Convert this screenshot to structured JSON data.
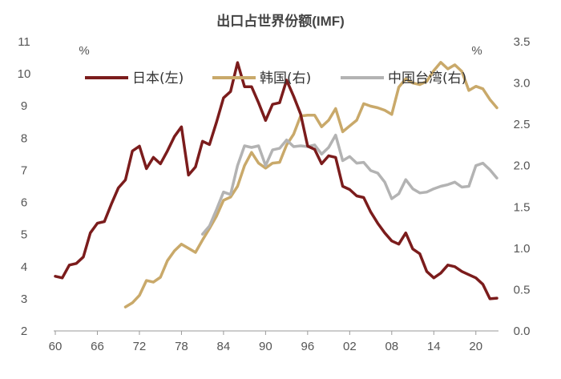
{
  "chart_data": {
    "type": "line",
    "title": "出口占世界份额(IMF)",
    "left_unit": "%",
    "right_unit": "%",
    "x_ticks": [
      "60",
      "66",
      "72",
      "78",
      "84",
      "90",
      "96",
      "02",
      "08",
      "14",
      "20"
    ],
    "x_tick_years": [
      1960,
      1966,
      1972,
      1978,
      1984,
      1990,
      1996,
      2002,
      2008,
      2014,
      2020
    ],
    "x_range": [
      1960,
      2023
    ],
    "y_left_range": [
      2,
      11
    ],
    "y_left_ticks": [
      "2",
      "3",
      "4",
      "5",
      "6",
      "7",
      "8",
      "9",
      "10",
      "11"
    ],
    "y_right_range": [
      0.0,
      3.5
    ],
    "y_right_ticks": [
      "0.0",
      "0.5",
      "1.0",
      "1.5",
      "2.0",
      "2.5",
      "3.0",
      "3.5"
    ],
    "series": [
      {
        "name": "日本(左)",
        "axis": "left",
        "color": "#7b1c1c",
        "x": [
          1960,
          1961,
          1962,
          1963,
          1964,
          1965,
          1966,
          1967,
          1968,
          1969,
          1970,
          1971,
          1972,
          1973,
          1974,
          1975,
          1976,
          1977,
          1978,
          1979,
          1980,
          1981,
          1982,
          1983,
          1984,
          1985,
          1986,
          1987,
          1988,
          1989,
          1990,
          1991,
          1992,
          1993,
          1994,
          1995,
          1996,
          1997,
          1998,
          1999,
          2000,
          2001,
          2002,
          2003,
          2004,
          2005,
          2006,
          2007,
          2008,
          2009,
          2010,
          2011,
          2012,
          2013,
          2014,
          2015,
          2016,
          2017,
          2018,
          2019,
          2020,
          2021,
          2022,
          2023
        ],
        "values": [
          3.7,
          3.65,
          4.05,
          4.1,
          4.3,
          5.05,
          5.35,
          5.4,
          5.95,
          6.45,
          6.7,
          7.6,
          7.75,
          7.05,
          7.4,
          7.2,
          7.6,
          8.05,
          8.35,
          6.85,
          7.1,
          7.9,
          7.8,
          8.5,
          9.25,
          9.45,
          10.35,
          9.6,
          9.6,
          9.1,
          8.55,
          9.05,
          9.1,
          9.8,
          9.3,
          8.75,
          7.75,
          7.65,
          7.2,
          7.45,
          7.4,
          6.5,
          6.4,
          6.2,
          6.15,
          5.7,
          5.35,
          5.05,
          4.8,
          4.7,
          5.05,
          4.55,
          4.4,
          3.85,
          3.65,
          3.8,
          4.05,
          4.0,
          3.85,
          3.75,
          3.65,
          3.45,
          3.0,
          3.02
        ]
      },
      {
        "name": "韩国(右)",
        "axis": "right",
        "color": "#c9a96a",
        "x": [
          1970,
          1971,
          1972,
          1973,
          1974,
          1975,
          1976,
          1977,
          1978,
          1979,
          1980,
          1981,
          1982,
          1983,
          1984,
          1985,
          1986,
          1987,
          1988,
          1989,
          1990,
          1991,
          1992,
          1993,
          1994,
          1995,
          1996,
          1997,
          1998,
          1999,
          2000,
          2001,
          2002,
          2003,
          2004,
          2005,
          2006,
          2007,
          2008,
          2009,
          2010,
          2011,
          2012,
          2013,
          2014,
          2015,
          2016,
          2017,
          2018,
          2019,
          2020,
          2021,
          2022,
          2023
        ],
        "values": [
          0.29,
          0.34,
          0.43,
          0.61,
          0.59,
          0.65,
          0.85,
          0.97,
          1.05,
          1.0,
          0.95,
          1.1,
          1.24,
          1.39,
          1.58,
          1.62,
          1.75,
          2.0,
          2.16,
          2.03,
          1.97,
          2.03,
          2.04,
          2.25,
          2.38,
          2.6,
          2.61,
          2.61,
          2.47,
          2.55,
          2.69,
          2.41,
          2.48,
          2.55,
          2.75,
          2.72,
          2.7,
          2.67,
          2.62,
          2.95,
          3.05,
          3.0,
          2.98,
          3.02,
          3.15,
          3.25,
          3.17,
          3.22,
          3.14,
          2.91,
          2.96,
          2.93,
          2.8,
          2.7
        ]
      },
      {
        "name": "中国台湾(右)",
        "axis": "right",
        "color": "#b3b3b3",
        "x": [
          1981,
          1982,
          1983,
          1984,
          1985,
          1986,
          1987,
          1988,
          1989,
          1990,
          1991,
          1992,
          1993,
          1994,
          1995,
          1996,
          1997,
          1998,
          1999,
          2000,
          2001,
          2002,
          2003,
          2004,
          2005,
          2006,
          2007,
          2008,
          2009,
          2010,
          2011,
          2012,
          2013,
          2014,
          2015,
          2016,
          2017,
          2018,
          2019,
          2020,
          2021,
          2022,
          2023
        ],
        "values": [
          1.17,
          1.27,
          1.47,
          1.68,
          1.65,
          2.0,
          2.24,
          2.22,
          2.24,
          2.0,
          2.19,
          2.21,
          2.31,
          2.23,
          2.24,
          2.23,
          2.25,
          2.14,
          2.22,
          2.37,
          2.06,
          2.11,
          2.03,
          2.04,
          1.94,
          1.91,
          1.8,
          1.6,
          1.66,
          1.83,
          1.72,
          1.67,
          1.68,
          1.72,
          1.75,
          1.77,
          1.8,
          1.74,
          1.75,
          2.0,
          2.03,
          1.95,
          1.85
        ]
      }
    ],
    "legend_position": "top-center",
    "grid": false
  }
}
